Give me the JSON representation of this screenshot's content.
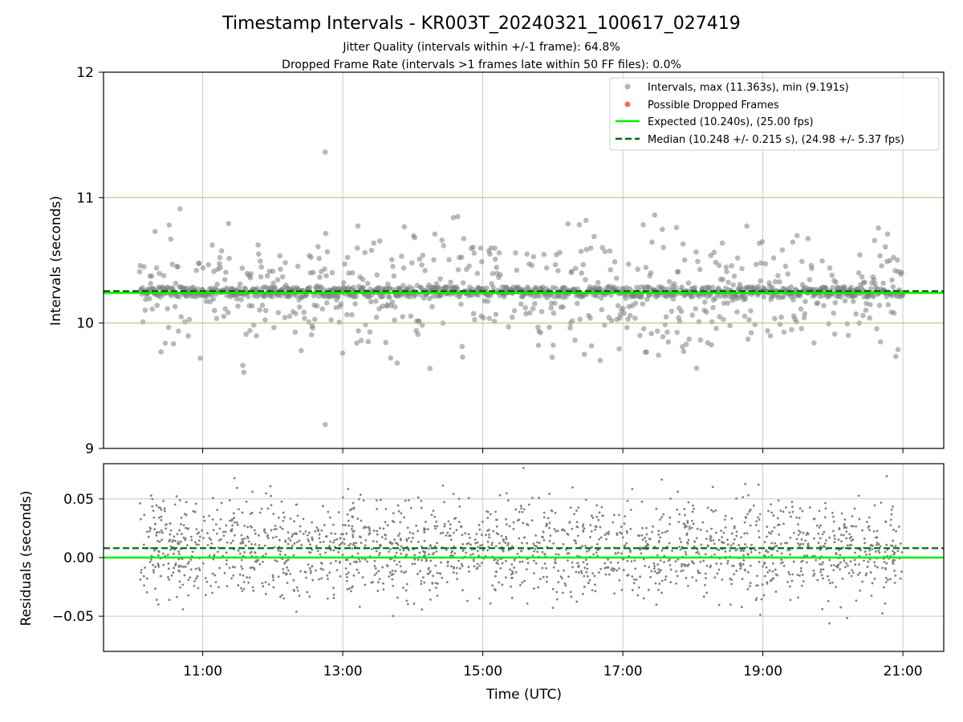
{
  "title": "Timestamp Intervals - KR003T_20240321_100617_027419",
  "subtitle_1": "Jitter Quality (intervals within +/-1 frame): 64.8%",
  "subtitle_2": "Dropped Frame Rate (intervals >1 frames late within 50 FF files): 0.0%",
  "colors": {
    "points": "#808080",
    "dropped": "#ff0000",
    "expected": "#00ee00",
    "median": "#006400",
    "band": "#c8be78",
    "grid": "#c8c8c8"
  },
  "chart_data": [
    {
      "type": "scatter",
      "ylabel": "Intervals (seconds)",
      "xlim": [
        "09:35",
        "21:35"
      ],
      "ylim": [
        9,
        12
      ],
      "yticks": [
        "9",
        "10",
        "11",
        "12"
      ],
      "xticks": [
        "11:00",
        "13:00",
        "15:00",
        "17:00",
        "19:00",
        "21:00"
      ],
      "grid": "x",
      "reference_lines": {
        "band_upper": 11.0,
        "band_lower": 10.0
      },
      "expected_value": 10.24,
      "median_value": 10.248,
      "data_range": {
        "x_start": "10:06",
        "x_end": "21:00",
        "ymax": 11.363,
        "ymin": 9.191
      },
      "legend_position": "top-right",
      "legend": [
        {
          "label": "Intervals, max (11.363s), min (9.191s)",
          "kind": "scatter-gray"
        },
        {
          "label": "Possible Dropped Frames",
          "kind": "scatter-red"
        },
        {
          "label": "Expected (10.240s), (25.00 fps)",
          "kind": "solid-green"
        },
        {
          "label": "Median (10.248 +/- 0.215 s), (24.98 +/- 5.37 fps)",
          "kind": "dashed-darkgreen"
        }
      ]
    },
    {
      "type": "scatter",
      "ylabel": "Residuals (seconds)",
      "xlabel": "Time (UTC)",
      "xlim": [
        "09:35",
        "21:35"
      ],
      "ylim": [
        -0.08,
        0.08
      ],
      "yticks": [
        "−0.05",
        "0.00",
        "0.05"
      ],
      "ytick_values": [
        -0.05,
        0.0,
        0.05
      ],
      "xticks": [
        "11:00",
        "13:00",
        "15:00",
        "17:00",
        "19:00",
        "21:00"
      ],
      "grid": "both",
      "zero_line": 0.0,
      "median_residual": 0.008
    }
  ]
}
